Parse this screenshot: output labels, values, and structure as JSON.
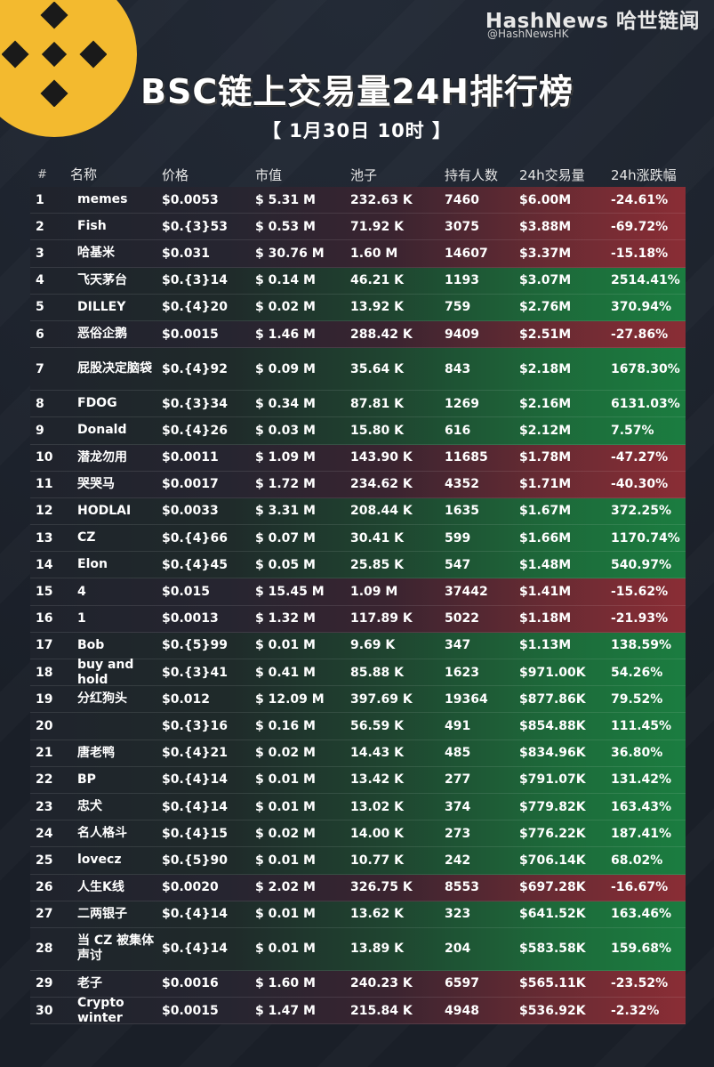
{
  "brand": {
    "name": "HashNews 哈世链闻",
    "handle": "@HashNewsHK"
  },
  "title": "BSC链上交易量24H排行榜",
  "subtitle": "【 1月30日 10时 】",
  "colors": {
    "logo": "#f3ba2f",
    "down": "#8a2d35",
    "up": "#1b7d40",
    "background": "#1c212b"
  },
  "table": {
    "headers": [
      "#",
      "名称",
      "价格",
      "市值",
      "池子",
      "持有人数",
      "24h交易量",
      "24h涨跌幅"
    ],
    "rows": [
      {
        "idx": "1",
        "name": "memes",
        "price": "$0.0053",
        "mcap": "$ 5.31 M",
        "pool": "232.63 K",
        "holders": "7460",
        "vol": "$6.00M",
        "chg": "-24.61%",
        "dir": "down"
      },
      {
        "idx": "2",
        "name": "Fish",
        "price": "$0.{3}53",
        "mcap": "$ 0.53 M",
        "pool": "71.92 K",
        "holders": "3075",
        "vol": "$3.88M",
        "chg": "-69.72%",
        "dir": "down"
      },
      {
        "idx": "3",
        "name": "哈基米",
        "price": "$0.031",
        "mcap": "$ 30.76 M",
        "pool": "1.60 M",
        "holders": "14607",
        "vol": "$3.37M",
        "chg": "-15.18%",
        "dir": "down"
      },
      {
        "idx": "4",
        "name": "飞天茅台",
        "price": "$0.{3}14",
        "mcap": "$ 0.14 M",
        "pool": "46.21 K",
        "holders": "1193",
        "vol": "$3.07M",
        "chg": "2514.41%",
        "dir": "up"
      },
      {
        "idx": "5",
        "name": "DILLEY",
        "price": "$0.{4}20",
        "mcap": "$ 0.02 M",
        "pool": "13.92 K",
        "holders": "759",
        "vol": "$2.76M",
        "chg": "370.94%",
        "dir": "up"
      },
      {
        "idx": "6",
        "name": "恶俗企鹅",
        "price": "$0.0015",
        "mcap": "$ 1.46 M",
        "pool": "288.42 K",
        "holders": "9409",
        "vol": "$2.51M",
        "chg": "-27.86%",
        "dir": "down"
      },
      {
        "idx": "7",
        "name": "屁股决定脑袋",
        "price": "$0.{4}92",
        "mcap": "$ 0.09 M",
        "pool": "35.64 K",
        "holders": "843",
        "vol": "$2.18M",
        "chg": "1678.30%",
        "dir": "up"
      },
      {
        "idx": "8",
        "name": "FDOG",
        "price": "$0.{3}34",
        "mcap": "$ 0.34 M",
        "pool": "87.81 K",
        "holders": "1269",
        "vol": "$2.16M",
        "chg": "6131.03%",
        "dir": "up"
      },
      {
        "idx": "9",
        "name": "Donald",
        "price": "$0.{4}26",
        "mcap": "$ 0.03 M",
        "pool": "15.80 K",
        "holders": "616",
        "vol": "$2.12M",
        "chg": "7.57%",
        "dir": "up"
      },
      {
        "idx": "10",
        "name": "潜龙勿用",
        "price": "$0.0011",
        "mcap": "$ 1.09 M",
        "pool": "143.90 K",
        "holders": "11685",
        "vol": "$1.78M",
        "chg": "-47.27%",
        "dir": "down"
      },
      {
        "idx": "11",
        "name": "哭哭马",
        "price": "$0.0017",
        "mcap": "$ 1.72 M",
        "pool": "234.62 K",
        "holders": "4352",
        "vol": "$1.71M",
        "chg": "-40.30%",
        "dir": "down"
      },
      {
        "idx": "12",
        "name": "HODLAI",
        "price": "$0.0033",
        "mcap": "$ 3.31 M",
        "pool": "208.44 K",
        "holders": "1635",
        "vol": "$1.67M",
        "chg": "372.25%",
        "dir": "up"
      },
      {
        "idx": "13",
        "name": "CZ",
        "price": "$0.{4}66",
        "mcap": "$ 0.07 M",
        "pool": "30.41 K",
        "holders": "599",
        "vol": "$1.66M",
        "chg": "1170.74%",
        "dir": "up"
      },
      {
        "idx": "14",
        "name": "Elon",
        "price": "$0.{4}45",
        "mcap": "$ 0.05 M",
        "pool": "25.85 K",
        "holders": "547",
        "vol": "$1.48M",
        "chg": "540.97%",
        "dir": "up"
      },
      {
        "idx": "15",
        "name": "4",
        "price": "$0.015",
        "mcap": "$ 15.45 M",
        "pool": "1.09 M",
        "holders": "37442",
        "vol": "$1.41M",
        "chg": "-15.62%",
        "dir": "down"
      },
      {
        "idx": "16",
        "name": "1",
        "price": "$0.0013",
        "mcap": "$ 1.32 M",
        "pool": "117.89 K",
        "holders": "5022",
        "vol": "$1.18M",
        "chg": "-21.93%",
        "dir": "down"
      },
      {
        "idx": "17",
        "name": "Bob",
        "price": "$0.{5}99",
        "mcap": "$ 0.01 M",
        "pool": "9.69 K",
        "holders": "347",
        "vol": "$1.13M",
        "chg": "138.59%",
        "dir": "up"
      },
      {
        "idx": "18",
        "name": "buy and hold",
        "price": "$0.{3}41",
        "mcap": "$ 0.41 M",
        "pool": "85.88 K",
        "holders": "1623",
        "vol": "$971.00K",
        "chg": "54.26%",
        "dir": "up"
      },
      {
        "idx": "19",
        "name": "分红狗头",
        "price": "$0.012",
        "mcap": "$ 12.09 M",
        "pool": "397.69 K",
        "holders": "19364",
        "vol": "$877.86K",
        "chg": "79.52%",
        "dir": "up"
      },
      {
        "idx": "20",
        "name": "",
        "price": "$0.{3}16",
        "mcap": "$ 0.16 M",
        "pool": "56.59 K",
        "holders": "491",
        "vol": "$854.88K",
        "chg": "111.45%",
        "dir": "up"
      },
      {
        "idx": "21",
        "name": "唐老鸭",
        "price": "$0.{4}21",
        "mcap": "$ 0.02 M",
        "pool": "14.43 K",
        "holders": "485",
        "vol": "$834.96K",
        "chg": "36.80%",
        "dir": "up"
      },
      {
        "idx": "22",
        "name": "BP",
        "price": "$0.{4}14",
        "mcap": "$ 0.01 M",
        "pool": "13.42 K",
        "holders": "277",
        "vol": "$791.07K",
        "chg": "131.42%",
        "dir": "up"
      },
      {
        "idx": "23",
        "name": "忠犬",
        "price": "$0.{4}14",
        "mcap": "$ 0.01 M",
        "pool": "13.02 K",
        "holders": "374",
        "vol": "$779.82K",
        "chg": "163.43%",
        "dir": "up"
      },
      {
        "idx": "24",
        "name": "名人格斗",
        "price": "$0.{4}15",
        "mcap": "$ 0.02 M",
        "pool": "14.00 K",
        "holders": "273",
        "vol": "$776.22K",
        "chg": "187.41%",
        "dir": "up"
      },
      {
        "idx": "25",
        "name": "lovecz",
        "price": "$0.{5}90",
        "mcap": "$ 0.01 M",
        "pool": "10.77 K",
        "holders": "242",
        "vol": "$706.14K",
        "chg": "68.02%",
        "dir": "up"
      },
      {
        "idx": "26",
        "name": "人生K线",
        "price": "$0.0020",
        "mcap": "$ 2.02 M",
        "pool": "326.75 K",
        "holders": "8553",
        "vol": "$697.28K",
        "chg": "-16.67%",
        "dir": "down"
      },
      {
        "idx": "27",
        "name": "二两银子",
        "price": "$0.{4}14",
        "mcap": "$ 0.01 M",
        "pool": "13.62 K",
        "holders": "323",
        "vol": "$641.52K",
        "chg": "163.46%",
        "dir": "up"
      },
      {
        "idx": "28",
        "name": "当 CZ 被集体声讨",
        "price": "$0.{4}14",
        "mcap": "$ 0.01 M",
        "pool": "13.89 K",
        "holders": "204",
        "vol": "$583.58K",
        "chg": "159.68%",
        "dir": "up"
      },
      {
        "idx": "29",
        "name": "老子",
        "price": "$0.0016",
        "mcap": "$ 1.60 M",
        "pool": "240.23 K",
        "holders": "6597",
        "vol": "$565.11K",
        "chg": "-23.52%",
        "dir": "down"
      },
      {
        "idx": "30",
        "name": "Crypto winter",
        "price": "$0.0015",
        "mcap": "$ 1.47 M",
        "pool": "215.84 K",
        "holders": "4948",
        "vol": "$536.92K",
        "chg": "-2.32%",
        "dir": "down"
      }
    ]
  }
}
